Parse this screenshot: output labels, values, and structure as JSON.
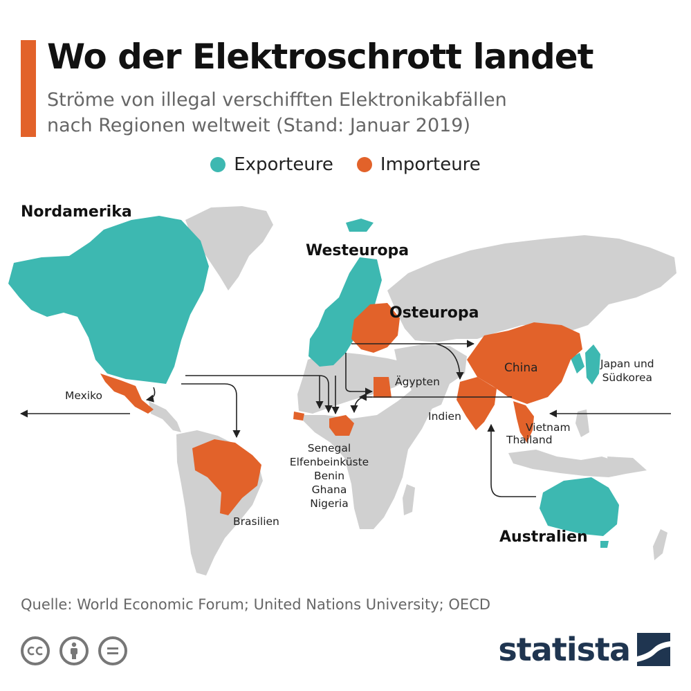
{
  "title": "Wo der Elektroschrott landet",
  "subtitle": [
    "Ströme von illegal verschifften Elektronikabfällen",
    "nach Regionen weltweit (Stand: Januar 2019)"
  ],
  "legend": [
    {
      "label": "Exporteure",
      "color": "#3db8b1"
    },
    {
      "label": "Importeure",
      "color": "#e2622a"
    }
  ],
  "colors": {
    "exporter": "#3db8b1",
    "importer": "#e2622a",
    "land": "#d0d0d0",
    "arrow": "#222222",
    "brand": "#1f3550"
  },
  "regions": {
    "north_america": "Nordamerika",
    "western_europe": "Westeuropa",
    "eastern_europe": "Osteuropa",
    "australia": "Australien"
  },
  "countries": {
    "mexico": "Mexiko",
    "egypt": "Ägypten",
    "china": "China",
    "japan_korea": [
      "Japan und",
      "Südkorea"
    ],
    "india": "Indien",
    "vietnam": "Vietnam",
    "thailand": "Thailand",
    "brazil": "Brasilien",
    "west_africa": [
      "Senegal",
      "Elfenbeinküste",
      "Benin",
      "Ghana",
      "Nigeria"
    ]
  },
  "exporters": [
    "Nordamerika",
    "Westeuropa",
    "Japan und Südkorea",
    "Australien"
  ],
  "importers": [
    "Mexiko",
    "Brasilien",
    "Senegal",
    "Elfenbeinküste",
    "Benin",
    "Ghana",
    "Nigeria",
    "Ägypten",
    "Osteuropa",
    "China",
    "Indien",
    "Vietnam",
    "Thailand"
  ],
  "source": "Quelle: World Economic Forum; United Nations University; OECD",
  "footer": {
    "icons": [
      "cc-icon",
      "by-icon",
      "nd-icon"
    ],
    "brand": "statista"
  }
}
